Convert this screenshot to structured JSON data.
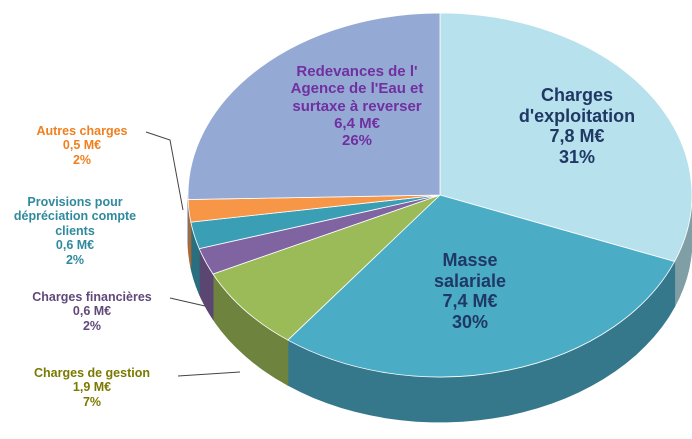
{
  "chart_data": {
    "type": "pie",
    "categories": [
      "Charges d'exploitation",
      "Masse salariale",
      "Charges de gestion",
      "Charges financières",
      "Provisions pour dépréciation compte clients",
      "Autres charges",
      "Redevances de l' Agence de l'Eau et surtaxe à reverser"
    ],
    "values": [
      7.8,
      7.4,
      1.9,
      0.6,
      0.6,
      0.5,
      6.4
    ],
    "value_labels": [
      "7,8 M€",
      "7,4 M€",
      "1,9 M€",
      "0,6 M€",
      "0,6 M€",
      "0,5 M€",
      "6,4 M€"
    ],
    "percents": [
      31,
      30,
      7,
      2,
      2,
      2,
      26
    ],
    "percent_labels": [
      "31%",
      "30%",
      "7%",
      "2%",
      "2%",
      "2%",
      "26%"
    ],
    "colors": [
      "#b7e1ec",
      "#4bacc6",
      "#9bbb59",
      "#8064a2",
      "#3a9fb5",
      "#f79646",
      "#95a9d5"
    ]
  }
}
